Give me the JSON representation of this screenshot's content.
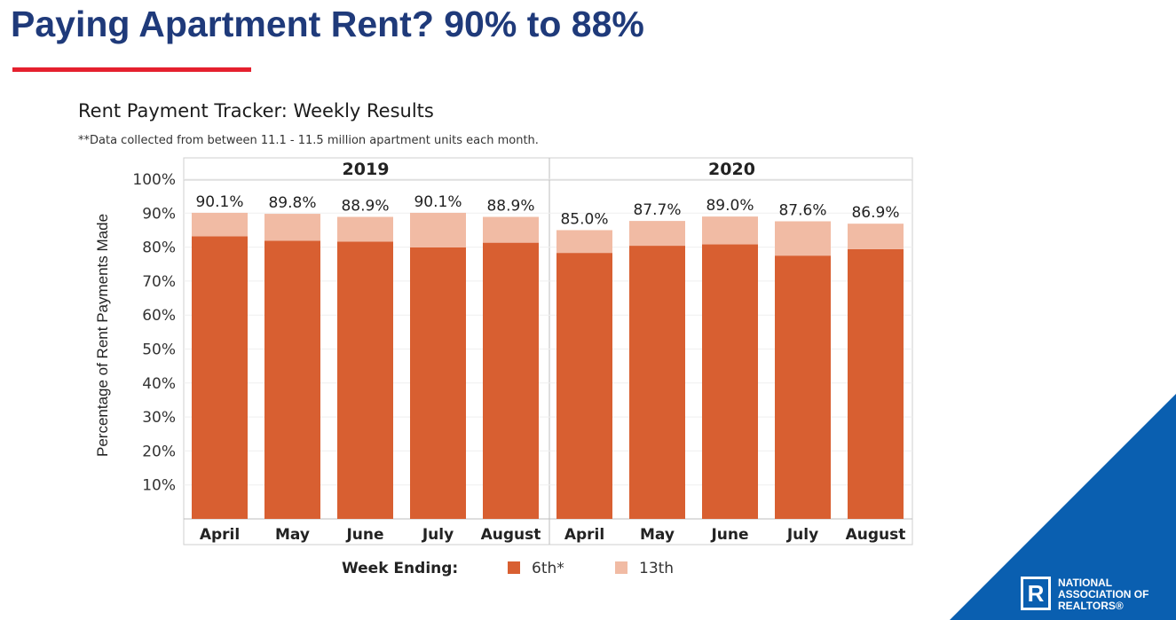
{
  "slide": {
    "title": "Paying Apartment Rent? 90% to 88%",
    "accent_rule_color": "#e5202e",
    "title_color": "#1f3a7a"
  },
  "chart_data": {
    "type": "bar",
    "stacked": true,
    "title": "Rent Payment Tracker: Weekly Results",
    "subtitle": "**Data collected from between 11.1 - 11.5 million apartment units each month.",
    "ylabel": "Percentage of Rent Payments Made",
    "ylim": [
      0,
      100
    ],
    "yticks": [
      "10%",
      "20%",
      "30%",
      "40%",
      "50%",
      "60%",
      "70%",
      "80%",
      "90%",
      "100%"
    ],
    "legend_title": "Week Ending:",
    "legend_position": "bottom",
    "panels": [
      {
        "name": "2019",
        "categories": [
          "April",
          "May",
          "June",
          "July",
          "August"
        ],
        "series": [
          {
            "name": "6th*",
            "color": "#d85f31",
            "values": [
              83.2,
              81.9,
              81.6,
              79.9,
              81.3
            ]
          },
          {
            "name": "13th",
            "color": "#f1bba4",
            "values": [
              6.9,
              7.9,
              7.3,
              10.2,
              7.6
            ]
          }
        ],
        "total_labels": [
          "90.1%",
          "89.8%",
          "88.9%",
          "90.1%",
          "88.9%"
        ]
      },
      {
        "name": "2020",
        "categories": [
          "April",
          "May",
          "June",
          "July",
          "August"
        ],
        "series": [
          {
            "name": "6th*",
            "color": "#d85f31",
            "values": [
              78.3,
              80.4,
              80.8,
              77.5,
              79.4
            ]
          },
          {
            "name": "13th",
            "color": "#f1bba4",
            "values": [
              6.7,
              7.3,
              8.2,
              10.1,
              7.5
            ]
          }
        ],
        "total_labels": [
          "85.0%",
          "87.7%",
          "89.0%",
          "87.6%",
          "86.9%"
        ]
      }
    ]
  },
  "branding": {
    "logo_mark": "R",
    "logo_lines": [
      "NATIONAL",
      "ASSOCIATION OF",
      "REALTORS®"
    ],
    "triangle_color": "#0a5fb0"
  }
}
